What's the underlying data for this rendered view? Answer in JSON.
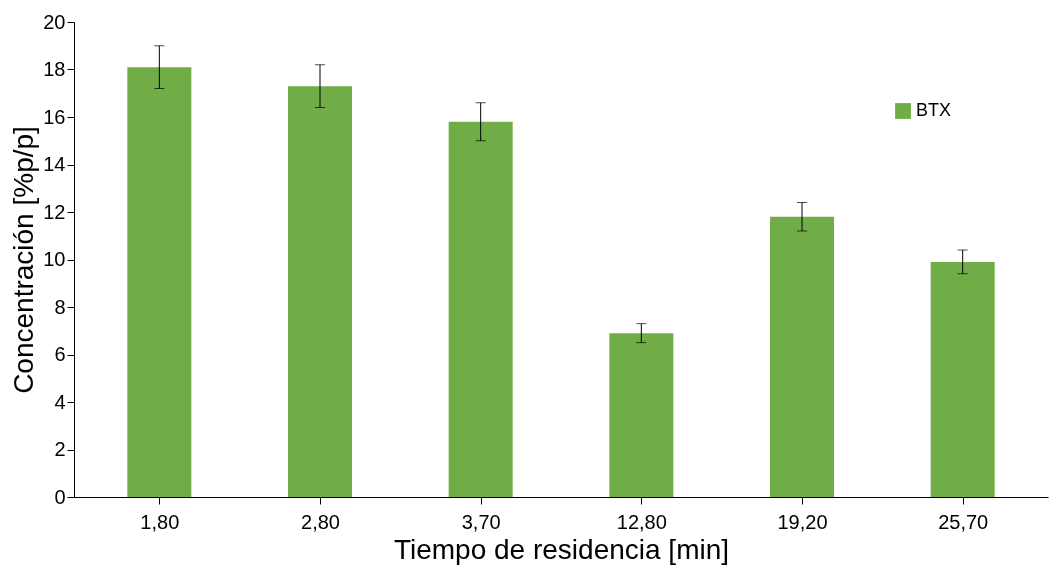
{
  "chart_data": {
    "type": "bar",
    "xlabel": "Tiempo de residencia [min]",
    "ylabel": "Concentración [%p/p]",
    "categories": [
      "1,80",
      "2,80",
      "3,70",
      "12,80",
      "19,20",
      "25,70"
    ],
    "series": [
      {
        "name": "BTX",
        "color": "#70ad47",
        "values": [
          18.1,
          17.3,
          15.8,
          6.9,
          11.8,
          9.9
        ],
        "errors": [
          0.9,
          0.9,
          0.8,
          0.4,
          0.6,
          0.5
        ]
      }
    ],
    "ylim": [
      0,
      20
    ],
    "yticks": [
      0,
      2,
      4,
      6,
      8,
      10,
      12,
      14,
      16,
      18,
      20
    ],
    "grid": false,
    "legend": "top right"
  }
}
